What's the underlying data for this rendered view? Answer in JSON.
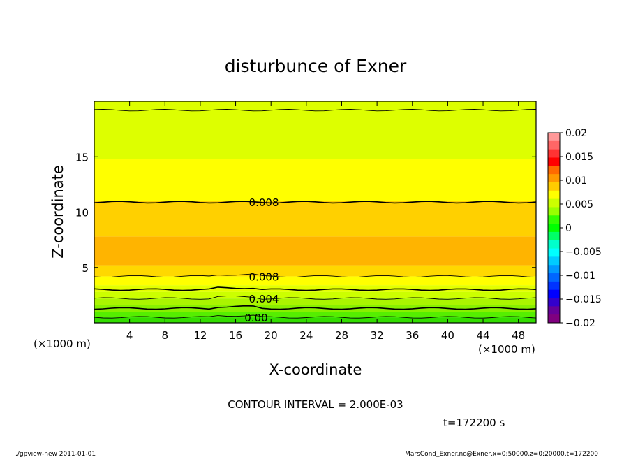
{
  "chart_data": {
    "type": "contour",
    "title": "disturbunce of Exner",
    "xlabel": "X-coordinate",
    "ylabel": "Z-coordinate",
    "x_unit_left": "(×1000 m)",
    "x_unit_right": "(×1000 m)",
    "xlim": [
      0,
      50
    ],
    "ylim": [
      0,
      20
    ],
    "x_ticks": [
      4,
      8,
      12,
      16,
      20,
      24,
      28,
      32,
      36,
      40,
      44,
      48
    ],
    "x_tick_labels": [
      "4",
      "8",
      "12",
      "16",
      "20",
      "24",
      "28",
      "32",
      "36",
      "40",
      "44",
      "48"
    ],
    "y_ticks": [
      5,
      10,
      15
    ],
    "y_tick_labels": [
      "5",
      "10",
      "15"
    ],
    "contour_interval_text": "CONTOUR INTERVAL = 2.000E-03",
    "time_text": "t=172200 s",
    "contour_labels": [
      {
        "text": "0.008",
        "x": 17.5,
        "z": 10.9
      },
      {
        "text": "0.008",
        "x": 17.5,
        "z": 4.2
      },
      {
        "text": "0.004",
        "x": 17.5,
        "z": 2.2
      },
      {
        "text": "0.00",
        "x": 17.0,
        "z": 0.5
      }
    ],
    "colorbar": {
      "tick_labels": [
        "0.02",
        "0.015",
        "0.01",
        "0.005",
        "0",
        "−0.005",
        "−0.01",
        "−0.015",
        "−0.02"
      ],
      "tick_values": [
        0.02,
        0.015,
        0.01,
        0.005,
        0,
        -0.005,
        -0.01,
        -0.015,
        -0.02
      ],
      "range": [
        -0.02,
        0.02
      ],
      "colors_top_to_bottom": [
        "#ff9999",
        "#ff6666",
        "#ff3333",
        "#ff0000",
        "#ff6a00",
        "#ff9900",
        "#ffcc00",
        "#ffff00",
        "#ccff00",
        "#99ff00",
        "#33ff00",
        "#00ff00",
        "#00ff66",
        "#00ffcc",
        "#00ffff",
        "#00ccff",
        "#0099ff",
        "#0066ff",
        "#0033ff",
        "#0000ff",
        "#3300cc",
        "#660099",
        "#800080"
      ]
    },
    "bands": [
      {
        "z": [
          0.0,
          0.5
        ],
        "value": 0.001,
        "color": "#33dd00"
      },
      {
        "z": [
          0.5,
          1.0
        ],
        "value": 0.002,
        "color": "#55ee00"
      },
      {
        "z": [
          1.0,
          1.6
        ],
        "value": 0.003,
        "color": "#88f000"
      },
      {
        "z": [
          1.6,
          2.2
        ],
        "value": 0.004,
        "color": "#aaf500"
      },
      {
        "z": [
          2.2,
          2.8
        ],
        "value": 0.005,
        "color": "#ccff00"
      },
      {
        "z": [
          2.8,
          3.4
        ],
        "value": 0.006,
        "color": "#e4ff00"
      },
      {
        "z": [
          3.4,
          4.2
        ],
        "value": 0.007,
        "color": "#ffff00"
      },
      {
        "z": [
          4.2,
          5.2
        ],
        "value": 0.008,
        "color": "#ffd800"
      },
      {
        "z": [
          5.2,
          7.8
        ],
        "value": 0.009,
        "color": "#ffb400"
      },
      {
        "z": [
          7.8,
          11.0
        ],
        "value": 0.008,
        "color": "#ffd000"
      },
      {
        "z": [
          11.0,
          14.8
        ],
        "value": 0.007,
        "color": "#ffff00"
      },
      {
        "z": [
          14.8,
          20.0
        ],
        "value": 0.006,
        "color": "#ddff00"
      }
    ],
    "contour_lines_z": [
      0.5,
      1.3,
      2.2,
      3.0,
      4.2,
      10.9,
      19.2
    ]
  },
  "footer": {
    "left": "./gpview-new   2011-01-01",
    "right": "MarsCond_Exner.nc@Exner,x=0:50000,z=0:20000,t=172200"
  }
}
